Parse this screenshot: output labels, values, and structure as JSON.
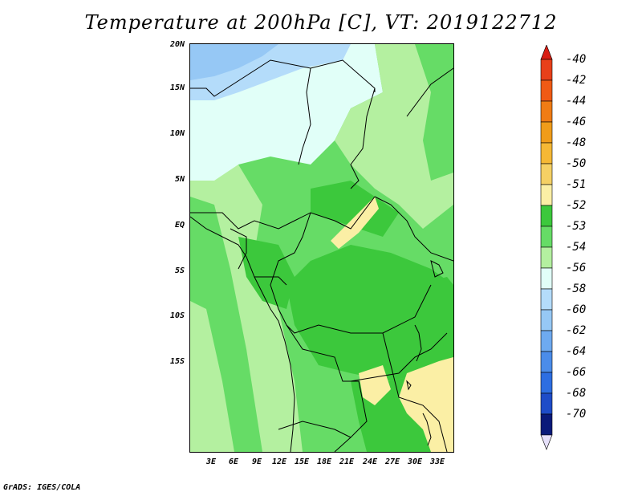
{
  "title": "Temperature at 200hPa [C], VT: 2019122712",
  "credit": "GrADS: IGES/COLA",
  "y_labels": [
    "20N",
    "15N",
    "10N",
    "5N",
    "EQ",
    "5S",
    "10S",
    "15S"
  ],
  "x_labels": [
    "3E",
    "6E",
    "9E",
    "12E",
    "15E",
    "18E",
    "21E",
    "24E",
    "27E",
    "30E",
    "33E"
  ],
  "colorbar": {
    "labels": [
      "-40",
      "-42",
      "-44",
      "-46",
      "-48",
      "-50",
      "-51",
      "-52",
      "-53",
      "-54",
      "-56",
      "-58",
      "-60",
      "-62",
      "-64",
      "-66",
      "-68",
      "-70"
    ],
    "colors": [
      "#e8401a",
      "#f05a14",
      "#f07c14",
      "#f09c1a",
      "#f5b835",
      "#f5d064",
      "#fbefa5",
      "#3cc83c",
      "#66dc66",
      "#b4f0a0",
      "#e1fff8",
      "#b4dcfa",
      "#96c8f5",
      "#6eaaf0",
      "#4b8cea",
      "#2d6ee2",
      "#1e4cc8",
      "#0a1a7a"
    ],
    "over_color": "#d81e14",
    "under_color": "#e6e0fa"
  },
  "map_fill_colors": {
    "c54": "#e1fff8",
    "c53": "#b4f0a0",
    "c52": "#66dc66",
    "c51": "#3cc83c",
    "c50": "#fbefa5",
    "c56": "#b4dcfa",
    "c58": "#96c8f5"
  }
}
